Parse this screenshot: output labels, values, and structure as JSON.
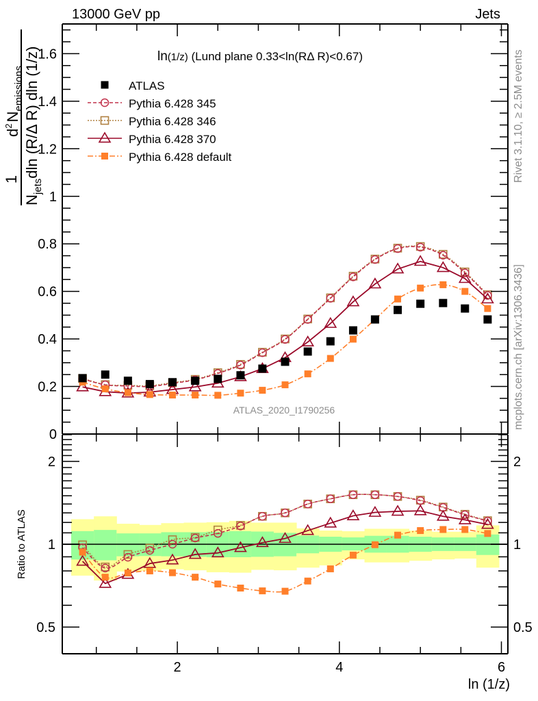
{
  "header": {
    "left_label": "13000 GeV pp",
    "right_label": "Jets"
  },
  "side_labels": {
    "rivet": "Rivet 3.1.10, ≥ 2.5M events",
    "mcplots": "mcplots.cern.ch [arXiv:1306.3436]"
  },
  "chart_data": [
    {
      "type": "line",
      "panel": "main",
      "title": "ln(1/z) (Lund plane 0.33<ln(RΔ R)<0.67)",
      "title_parts": {
        "lead": "ln",
        "small": "(1/z)",
        "rest": " (Lund plane 0.33<ln(RΔ R)<0.67)"
      },
      "watermark": "ATLAS_2020_I1790256",
      "ylabel_parts": {
        "one": "1",
        "den_N": "N",
        "den_sub": "jets",
        "den_rest": "dln (R/Δ R) dln (1/z)",
        "num_d": "d",
        "num_sup": "2",
        "num_N": "N",
        "num_sub": "emissions"
      },
      "xlim": [
        0.58,
        6.08
      ],
      "ylim": [
        0,
        1.725
      ],
      "yticks": [
        0,
        0.2,
        0.4,
        0.6,
        0.8,
        1,
        1.2,
        1.4,
        1.6
      ],
      "ytick_labels": [
        "0",
        "0.2",
        "0.4",
        "0.6",
        "0.8",
        "1",
        "1.2",
        "1.4",
        "1.6"
      ],
      "x": [
        0.83,
        1.11,
        1.39,
        1.66,
        1.94,
        2.22,
        2.5,
        2.78,
        3.05,
        3.33,
        3.61,
        3.89,
        4.17,
        4.44,
        4.72,
        5.0,
        5.28,
        5.55,
        5.83
      ],
      "legend_position": "top-left",
      "series": [
        {
          "name": "ATLAS",
          "style": "data",
          "color": "#000000",
          "values": [
            0.235,
            0.25,
            0.224,
            0.21,
            0.218,
            0.224,
            0.232,
            0.247,
            0.275,
            0.304,
            0.347,
            0.39,
            0.436,
            0.482,
            0.522,
            0.548,
            0.551,
            0.528,
            0.482
          ]
        },
        {
          "name": "Pythia 6.428 345",
          "style": "dashed-circle",
          "color": "#c0304a",
          "values": [
            0.232,
            0.207,
            0.202,
            0.2,
            0.213,
            0.228,
            0.255,
            0.29,
            0.342,
            0.398,
            0.482,
            0.571,
            0.661,
            0.734,
            0.78,
            0.786,
            0.752,
            0.678,
            0.583
          ]
        },
        {
          "name": "Pythia 6.428 346",
          "style": "dotted-square",
          "color": "#b08040",
          "values": [
            0.234,
            0.208,
            0.205,
            0.203,
            0.216,
            0.23,
            0.258,
            0.293,
            0.344,
            0.4,
            0.484,
            0.573,
            0.664,
            0.736,
            0.782,
            0.789,
            0.756,
            0.682,
            0.586
          ]
        },
        {
          "name": "Pythia 6.428 370",
          "style": "solid-triangle",
          "color": "#9b0a2a",
          "values": [
            0.198,
            0.178,
            0.172,
            0.176,
            0.187,
            0.198,
            0.214,
            0.241,
            0.275,
            0.321,
            0.387,
            0.465,
            0.556,
            0.631,
            0.694,
            0.726,
            0.7,
            0.654,
            0.568
          ]
        },
        {
          "name": "Pythia 6.428 default",
          "style": "dashdot-filled-square",
          "color": "#ff7f2a",
          "values": [
            0.218,
            0.19,
            0.174,
            0.166,
            0.164,
            0.164,
            0.163,
            0.172,
            0.184,
            0.207,
            0.253,
            0.318,
            0.399,
            0.482,
            0.568,
            0.614,
            0.628,
            0.6,
            0.528
          ]
        }
      ]
    },
    {
      "type": "line",
      "panel": "ratio",
      "ylabel": "Ratio to ATLAS",
      "xlabel": "ln (1/z)",
      "xlim": [
        0.58,
        6.08
      ],
      "ylim": [
        0.4,
        2.5
      ],
      "yscale": "log",
      "yticks": [
        0.5,
        1,
        2
      ],
      "ytick_labels": [
        "0.5",
        "1",
        "2"
      ],
      "xticks": [
        2,
        4,
        6
      ],
      "xtick_labels": [
        "2",
        "4",
        "6"
      ],
      "bin_edges": [
        0.69,
        0.97,
        1.25,
        1.53,
        1.8,
        2.08,
        2.36,
        2.64,
        2.91,
        3.19,
        3.47,
        3.75,
        4.03,
        4.31,
        4.58,
        4.86,
        5.14,
        5.42,
        5.69,
        5.97
      ],
      "band_total": {
        "color": "#ffff99",
        "upper": [
          1.233,
          1.263,
          1.187,
          1.175,
          1.193,
          1.198,
          1.202,
          1.216,
          1.198,
          1.198,
          1.142,
          1.121,
          1.115,
          1.138,
          1.138,
          1.121,
          1.11,
          1.11,
          1.171
        ],
        "lower": [
          0.769,
          0.738,
          0.796,
          0.801,
          0.811,
          0.804,
          0.791,
          0.788,
          0.807,
          0.804,
          0.822,
          0.838,
          0.881,
          0.859,
          0.859,
          0.871,
          0.881,
          0.887,
          0.822
        ]
      },
      "band_stat": {
        "color": "#99ff99",
        "upper": [
          1.116,
          1.127,
          1.095,
          1.095,
          1.106,
          1.106,
          1.11,
          1.116,
          1.112,
          1.1,
          1.075,
          1.065,
          1.059,
          1.073,
          1.073,
          1.065,
          1.059,
          1.059,
          1.085
        ],
        "lower": [
          0.88,
          0.874,
          0.904,
          0.906,
          0.904,
          0.9,
          0.897,
          0.897,
          0.9,
          0.904,
          0.927,
          0.939,
          0.95,
          0.932,
          0.932,
          0.939,
          0.945,
          0.945,
          0.914
        ]
      },
      "series": [
        {
          "name": "Pythia 6.428 345",
          "style": "dashed-circle",
          "color": "#c0304a",
          "values": [
            0.972,
            0.819,
            0.897,
            0.95,
            1.0,
            1.053,
            1.095,
            1.165,
            1.263,
            1.3,
            1.4,
            1.462,
            1.513,
            1.513,
            1.491,
            1.44,
            1.36,
            1.28,
            1.214
          ]
        },
        {
          "name": "Pythia 6.428 346",
          "style": "dotted-square",
          "color": "#b08040",
          "values": [
            0.995,
            0.827,
            0.918,
            0.968,
            1.039,
            1.059,
            1.127,
            1.171,
            1.263,
            1.3,
            1.4,
            1.462,
            1.513,
            1.513,
            1.491,
            1.446,
            1.365,
            1.285,
            1.218
          ]
        },
        {
          "name": "Pythia 6.428 370",
          "style": "solid-triangle",
          "color": "#9b0a2a",
          "values": [
            0.867,
            0.72,
            0.777,
            0.851,
            0.876,
            0.918,
            0.93,
            0.972,
            1.013,
            1.049,
            1.121,
            1.193,
            1.268,
            1.305,
            1.317,
            1.322,
            1.263,
            1.226,
            1.18
          ]
        },
        {
          "name": "Pythia 6.428 default",
          "style": "dashdot-filled-square",
          "color": "#ff7f2a",
          "values": [
            0.936,
            0.759,
            0.786,
            0.8,
            0.788,
            0.759,
            0.717,
            0.693,
            0.677,
            0.675,
            0.735,
            0.814,
            0.913,
            0.996,
            1.079,
            1.121,
            1.131,
            1.131,
            1.094
          ]
        }
      ]
    }
  ]
}
